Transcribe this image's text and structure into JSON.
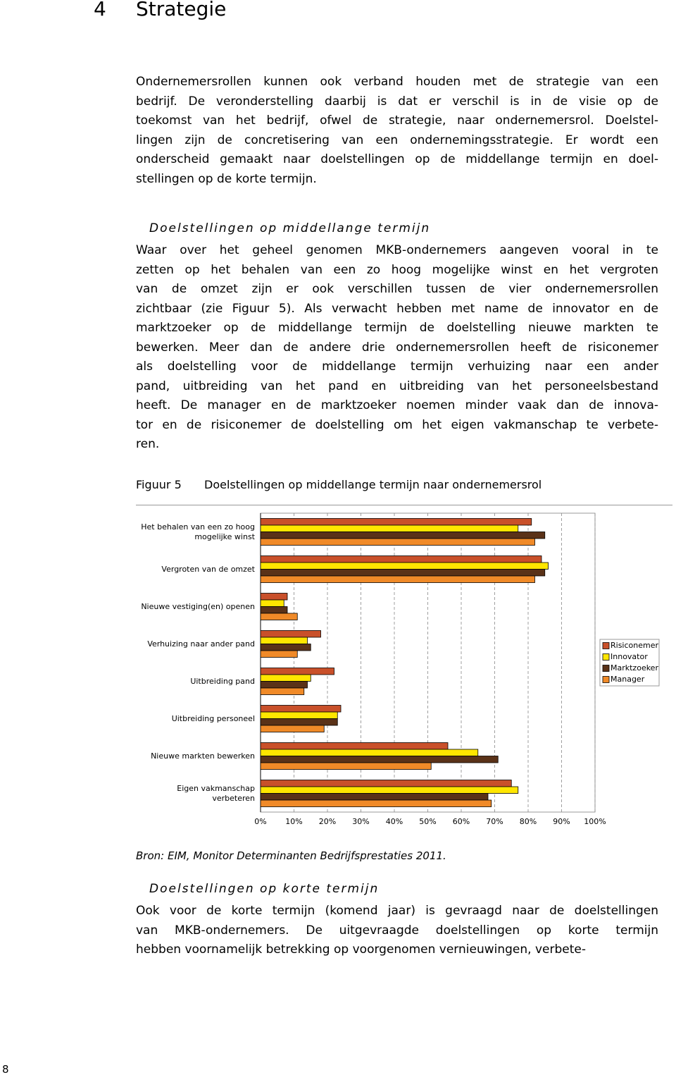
{
  "chapter": {
    "number": "4",
    "title": "Strategie"
  },
  "intro": {
    "lines": [
      "Ondernemersrollen kunnen ook verband houden met de strategie van een",
      "bedrijf. De veronderstelling daarbij is dat er verschil is in de visie op de",
      "toekomst van het bedrijf, ofwel de strategie, naar ondernemersrol. Doelstel-",
      "lingen zijn de concretisering van een ondernemingsstrategie. Er wordt een",
      "onderscheid gemaakt naar doelstellingen op de middellange termijn en doel-",
      "stellingen op de korte termijn."
    ]
  },
  "section1": {
    "heading": "Doelstellingen op middellange termijn",
    "lines": [
      "Waar over het geheel genomen MKB-ondernemers aangeven vooral in te",
      "zetten op het behalen van een zo hoog mogelijke winst en het vergroten",
      "van de omzet zijn er ook verschillen tussen de vier ondernemersrollen",
      "zichtbaar (zie Figuur 5). Als verwacht hebben met name de innovator en de",
      "marktzoeker op de middellange termijn de doelstelling nieuwe markten te",
      "bewerken. Meer dan de andere drie ondernemersrollen heeft de risiconemer",
      "als doelstelling voor de middellange termijn verhuizing naar een ander",
      "pand, uitbreiding van het pand en uitbreiding van het personeelsbestand",
      "heeft. De manager en de marktzoeker noemen minder vaak dan de innova-",
      "tor en de risiconemer de doelstelling om het eigen vakmanschap te verbete-",
      "ren."
    ]
  },
  "figure": {
    "label": "Figuur 5",
    "title": "Doelstellingen op middellange termijn naar ondernemersrol"
  },
  "chart_data": {
    "type": "bar",
    "orientation": "horizontal",
    "categories": [
      "Het behalen van een zo hoog mogelijke winst",
      "Vergroten van de omzet",
      "Nieuwe vestiging(en) openen",
      "Verhuizing naar ander pand",
      "Uitbreiding pand",
      "Uitbreiding personeel",
      "Nieuwe markten bewerken",
      "Eigen vakmanschap verbeteren"
    ],
    "series": [
      {
        "name": "Risiconemer",
        "color": "#c9502a",
        "values": [
          81,
          84,
          8,
          18,
          22,
          24,
          56,
          75
        ]
      },
      {
        "name": "Innovator",
        "color": "#ffe600",
        "values": [
          77,
          86,
          7,
          14,
          15,
          23,
          65,
          77
        ]
      },
      {
        "name": "Marktzoeker",
        "color": "#5a3218",
        "values": [
          85,
          85,
          8,
          15,
          14,
          23,
          71,
          68
        ]
      },
      {
        "name": "Manager",
        "color": "#f08a28",
        "values": [
          82,
          82,
          11,
          11,
          13,
          19,
          51,
          69
        ]
      }
    ],
    "xlim": [
      0,
      100
    ],
    "xticks": [
      {
        "value": 0,
        "label": "0%"
      },
      {
        "value": 10,
        "label": "10%"
      },
      {
        "value": 20,
        "label": "20%"
      },
      {
        "value": 30,
        "label": "30%"
      },
      {
        "value": 40,
        "label": "40%"
      },
      {
        "value": 50,
        "label": "50%"
      },
      {
        "value": 60,
        "label": "60%"
      },
      {
        "value": 70,
        "label": "70%"
      },
      {
        "value": 80,
        "label": "80%"
      },
      {
        "value": 90,
        "label": "90%"
      },
      {
        "value": 100,
        "label": "100%"
      }
    ],
    "grid": true,
    "legend": "right"
  },
  "source": "Bron: EIM, Monitor Determinanten Bedrijfsprestaties 2011.",
  "section2": {
    "heading": "Doelstellingen op korte termijn",
    "lines": [
      "Ook voor de korte termijn (komend jaar) is gevraagd naar de doelstellingen",
      "van MKB-ondernemers. De uitgevraagde doelstellingen op korte termijn",
      "hebben voornamelijk betrekking op voorgenomen vernieuwingen, verbete-"
    ]
  },
  "page_number": "8"
}
